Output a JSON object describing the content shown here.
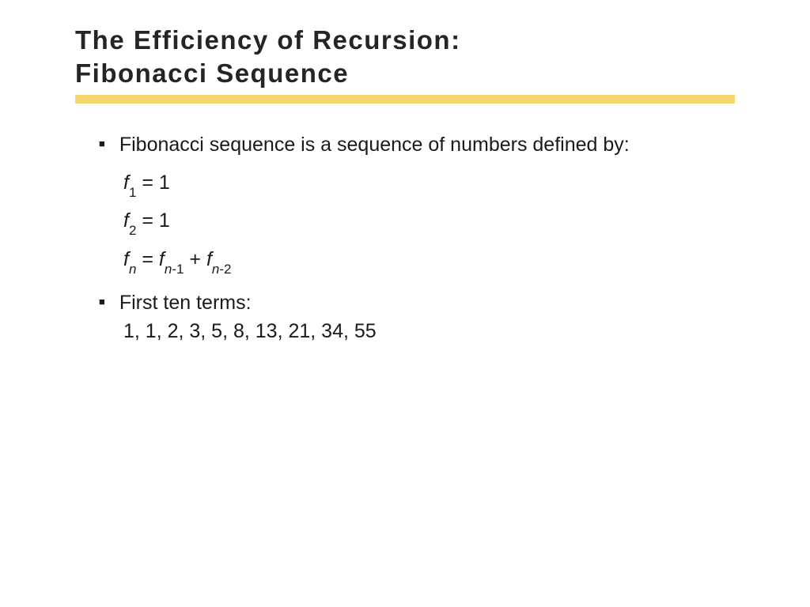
{
  "title": {
    "line1": "The Efficiency of Recursion:",
    "line2": "Fibonacci Sequence",
    "title_color": "#252525",
    "title_fontsize": 33,
    "underline_color": "#f4d66e",
    "underline_height": 11
  },
  "content": {
    "bullet1": {
      "text": "Fibonacci sequence is a sequence of numbers defined by:",
      "definitions": {
        "def1": {
          "var": "f",
          "sub": "1",
          "eq": " = 1"
        },
        "def2": {
          "var": "f",
          "sub": "2",
          "eq": " = 1"
        },
        "def3": {
          "lhs_var": "f",
          "lhs_sub": "n",
          "eq1": " = ",
          "r1_var": "f",
          "r1_sub": "n",
          "r1_tail": "-1",
          "plus": " + ",
          "r2_var": "f",
          "r2_sub": "n",
          "r2_tail": "-2"
        }
      }
    },
    "bullet2": {
      "text": "First ten terms:",
      "terms": "1, 1, 2, 3, 5, 8, 13, 21, 34, 55"
    },
    "body_fontsize": 25,
    "body_color": "#1a1a1a",
    "background_color": "#ffffff"
  }
}
